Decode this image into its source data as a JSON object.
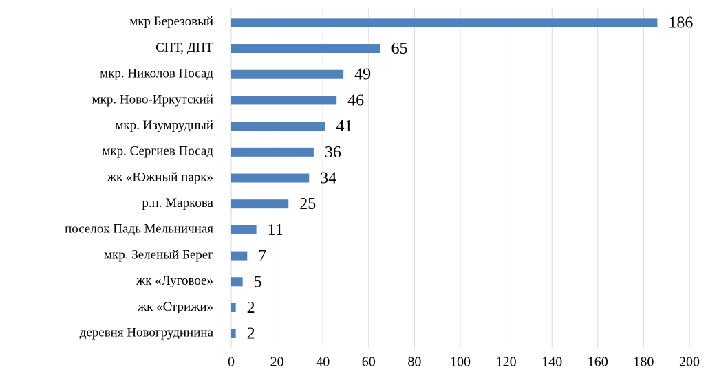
{
  "chart_data": {
    "type": "barh",
    "categories": [
      "мкр Березовый",
      "СНТ, ДНТ",
      "мкр. Николов Посад",
      "мкр. Ново-Иркутский",
      "мкр. Изумрудный",
      "мкр. Сергиев Посад",
      "жк «Южный парк»",
      "р.п. Маркова",
      "поселок Падь Мельничная",
      "мкр. Зеленый Берег",
      "жк «Луговое»",
      "жк «Стрижи»",
      "деревня Новогрудинина"
    ],
    "values": [
      186,
      65,
      49,
      46,
      41,
      36,
      34,
      25,
      11,
      7,
      5,
      2,
      2
    ],
    "color": "#4f81bd",
    "xlim": [
      0,
      200
    ],
    "xticks": [
      0,
      20,
      40,
      60,
      80,
      100,
      120,
      140,
      160,
      180,
      200
    ],
    "grid": true
  }
}
